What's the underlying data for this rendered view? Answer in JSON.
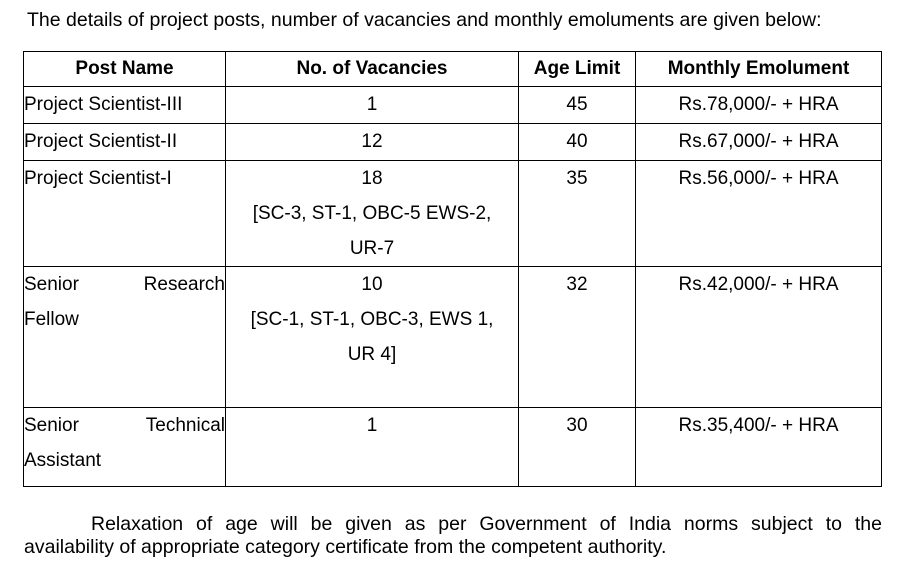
{
  "intro_text": "The details of project posts, number of vacancies and monthly emoluments are given below:",
  "table": {
    "headers": {
      "post_name": "Post Name",
      "vacancies": "No. of Vacancies",
      "age_limit": "Age Limit",
      "emolument": "Monthly Emolument"
    },
    "rows": [
      {
        "post_name": "Project Scientist-III",
        "vacancies": "1",
        "age_limit": "45",
        "emolument": "Rs.78,000/- + HRA"
      },
      {
        "post_name": "Project Scientist-II",
        "vacancies": "12",
        "age_limit": "40",
        "emolument": "Rs.67,000/- + HRA"
      },
      {
        "post_name": "Project Scientist-I",
        "vacancies": "18",
        "vacancy_breakup_1": "[SC-3, ST-1, OBC-5 EWS-2,",
        "vacancy_breakup_2": "UR-7",
        "age_limit": "35",
        "emolument": "Rs.56,000/- + HRA"
      },
      {
        "post_name_word1": "Senior",
        "post_name_word2": "Research",
        "post_name_word3": "Fellow",
        "vacancies": "10",
        "vacancy_breakup_1": "[SC-1, ST-1, OBC-3, EWS 1,",
        "vacancy_breakup_2": "UR 4]",
        "age_limit": "32",
        "emolument": "Rs.42,000/- + HRA"
      },
      {
        "post_name_word1": "Senior",
        "post_name_word2": "Technical",
        "post_name_word3": "Assistant",
        "vacancies": "1",
        "age_limit": "30",
        "emolument": "Rs.35,400/- + HRA"
      }
    ]
  },
  "note_line1": "Relaxation of age will be given as per Government of India norms subject to the",
  "note_line2": "availability of appropriate category certificate from the competent authority."
}
